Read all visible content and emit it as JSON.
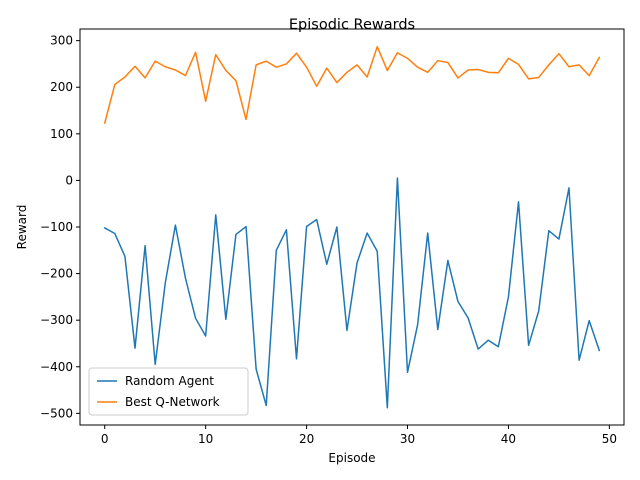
{
  "chart_data": {
    "type": "line",
    "title": "Episodic Rewards",
    "xlabel": "Episode",
    "ylabel": "Reward",
    "xlim": [
      -2.45,
      51.45
    ],
    "ylim": [
      -525,
      325
    ],
    "xticks": [
      0,
      10,
      20,
      30,
      40,
      50
    ],
    "yticks": [
      -500,
      -400,
      -300,
      -200,
      -100,
      0,
      100,
      200,
      300
    ],
    "grid": false,
    "legend_position": "lower-left",
    "x": [
      0,
      1,
      2,
      3,
      4,
      5,
      6,
      7,
      8,
      9,
      10,
      11,
      12,
      13,
      14,
      15,
      16,
      17,
      18,
      19,
      20,
      21,
      22,
      23,
      24,
      25,
      26,
      27,
      28,
      29,
      30,
      31,
      32,
      33,
      34,
      35,
      36,
      37,
      38,
      39,
      40,
      41,
      42,
      43,
      44,
      45,
      46,
      47,
      48,
      49
    ],
    "series": [
      {
        "name": "Random Agent",
        "color": "#1f77b4",
        "values": [
          -102,
          -114,
          -163,
          -360,
          -140,
          -395,
          -220,
          -96,
          -210,
          -296,
          -334,
          -74,
          -298,
          -116,
          -99,
          -405,
          -483,
          -150,
          -106,
          -383,
          -99,
          -84,
          -180,
          -100,
          -322,
          -177,
          -113,
          -152,
          -488,
          5,
          -412,
          -310,
          -113,
          -320,
          -172,
          -260,
          -295,
          -362,
          -343,
          -357,
          -250,
          -46,
          -354,
          -280,
          -108,
          -126,
          -16,
          -386,
          -301,
          -365
        ]
      },
      {
        "name": "Best Q-Network",
        "color": "#ff7f0e",
        "values": [
          123,
          206,
          222,
          245,
          220,
          256,
          244,
          237,
          225,
          275,
          170,
          270,
          236,
          214,
          131,
          248,
          256,
          243,
          250,
          273,
          243,
          202,
          241,
          210,
          232,
          248,
          222,
          287,
          236,
          274,
          262,
          243,
          232,
          257,
          253,
          220,
          237,
          238,
          232,
          231,
          262,
          249,
          218,
          221,
          248,
          272,
          244,
          248,
          225,
          264
        ]
      }
    ]
  }
}
